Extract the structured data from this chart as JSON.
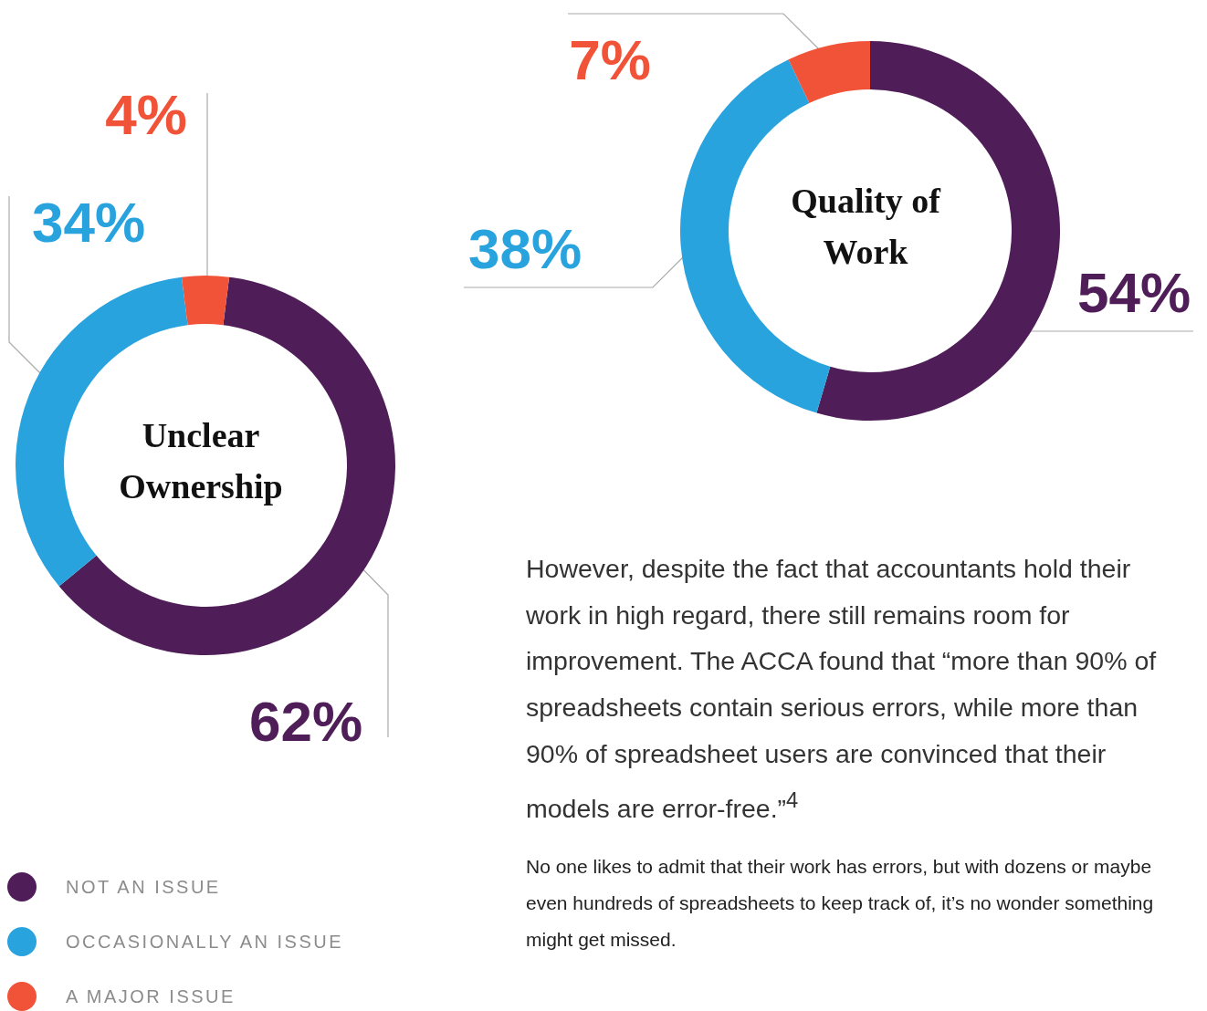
{
  "chart_data": [
    {
      "type": "donut",
      "title": "Unclear Ownership",
      "categories": [
        "NOT AN ISSUE",
        "OCCASIONALLY AN ISSUE",
        "A MAJOR ISSUE"
      ],
      "values": [
        62,
        34,
        4
      ],
      "colors": [
        "#4f1d58",
        "#29a3de",
        "#f15338"
      ],
      "value_labels": [
        "62%",
        "34%",
        "4%"
      ],
      "legend": "bottom left"
    },
    {
      "type": "donut",
      "title": "Quality of Work",
      "categories": [
        null,
        null,
        null
      ],
      "values": [
        54,
        38,
        7
      ],
      "colors": [
        "#4f1d58",
        "#29a3de",
        "#f15338"
      ],
      "value_labels": [
        "54%",
        "38%",
        "7%"
      ],
      "annotations": [
        "However, despite the fact that accountants hold their work in high regard, there still remains room for improvement. The ACCA found that “more than 90% of spreadsheets contain serious errors, while more than 90% of spreadsheet users are convinced that their models are error-free.”$^{4}$",
        "No one likes to admit that their work has errors, but with dozens or maybe even hundreds of spreadsheets to keep track of, it’s no wonder something might get missed."
      ]
    }
  ]
}
